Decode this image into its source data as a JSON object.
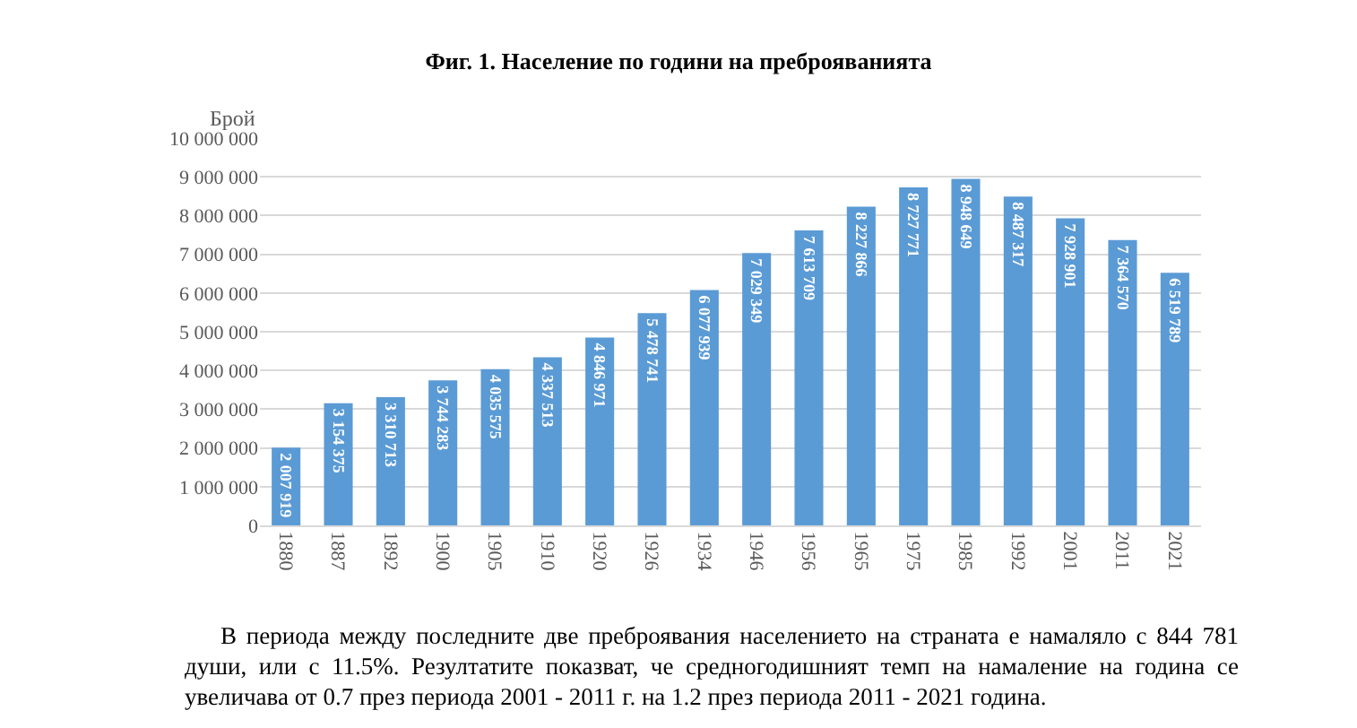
{
  "chart_data": {
    "type": "bar",
    "title": "Фиг. 1. Население по години на преброяванията",
    "ylabel": "Брой",
    "categories": [
      "1880",
      "1887",
      "1892",
      "1900",
      "1905",
      "1910",
      "1920",
      "1926",
      "1934",
      "1946",
      "1956",
      "1965",
      "1975",
      "1985",
      "1992",
      "2001",
      "2011",
      "2021"
    ],
    "values": [
      2007919,
      3154375,
      3310713,
      3744283,
      4035575,
      4337513,
      4846971,
      5478741,
      6077939,
      7029349,
      7613709,
      8227866,
      8727771,
      8948649,
      8487317,
      7928901,
      7364570,
      6519789
    ],
    "value_labels": [
      "2 007 919",
      "3 154 375",
      "3 310 713",
      "3 744 283",
      "4 035 575",
      "4 337 513",
      "4 846 971",
      "5 478 741",
      "6 077 939",
      "7 029 349",
      "7 613 709",
      "8 227 866",
      "8 727 771",
      "8 948 649",
      "8 487 317",
      "7 928 901",
      "7 364 570",
      "6 519 789"
    ],
    "color": "#5b9bd5",
    "ylim": [
      0,
      10000000
    ],
    "yticks": [
      {
        "value": 0,
        "label": "0"
      },
      {
        "value": 1000000,
        "label": "1 000 000"
      },
      {
        "value": 2000000,
        "label": "2 000 000"
      },
      {
        "value": 3000000,
        "label": "3 000 000"
      },
      {
        "value": 4000000,
        "label": "4 000 000"
      },
      {
        "value": 5000000,
        "label": "5 000 000"
      },
      {
        "value": 6000000,
        "label": "6 000 000"
      },
      {
        "value": 7000000,
        "label": "7 000 000"
      },
      {
        "value": 8000000,
        "label": "8 000 000"
      },
      {
        "value": 9000000,
        "label": "9 000 000"
      },
      {
        "value": 10000000,
        "label": "10 000 000"
      }
    ],
    "grid": "y",
    "annotations": [
      "В периода между последните две преброявания населението на страната е намаляло с 844 781 души, или с 11.5%. Резултатите показват, че средногодишният темп на намаление на година се увеличава от 0.7 през периода 2001 - 2011 г. на 1.2 през периода 2011 - 2021 година."
    ]
  }
}
